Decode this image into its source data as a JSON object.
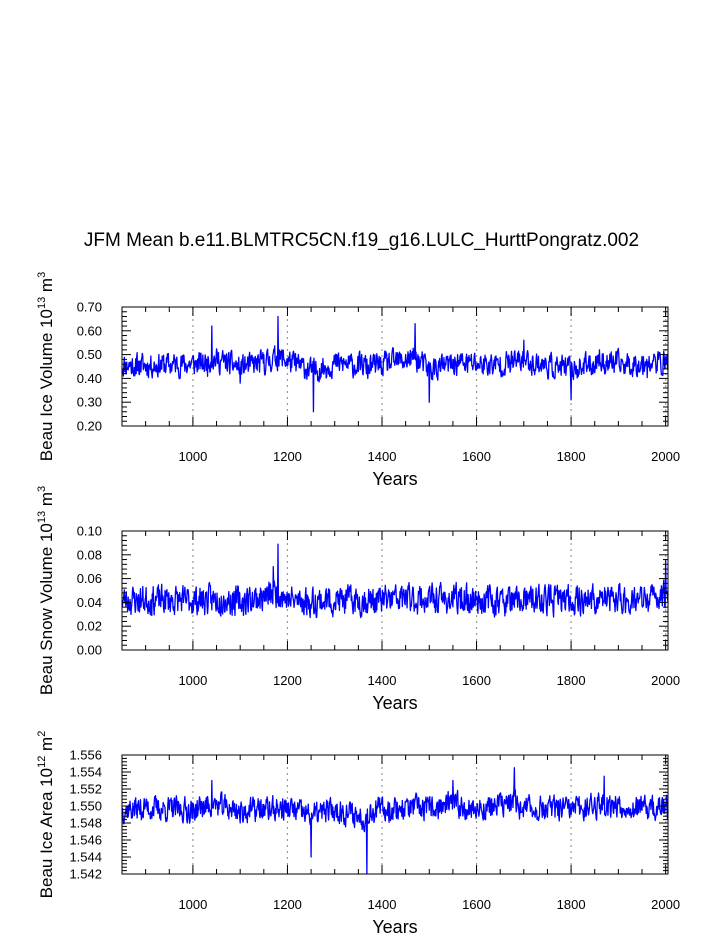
{
  "title": "JFM Mean b.e11.BLMTRC5CN.f19_g16.LULC_HurttPongratz.002",
  "colors": {
    "series": "#0000ff",
    "axis": "#000000",
    "refline": "#999999"
  },
  "chart_data": [
    {
      "type": "line",
      "name": "ice-volume",
      "ylabel": "Beau Ice Volume 10^13 m^3",
      "ylabel_parts": {
        "pre": "Beau Ice Volume 10",
        "sup1": "13",
        "mid": " m",
        "sup2": "3"
      },
      "xlabel": "Years",
      "xlim": [
        850,
        2005
      ],
      "ylim": [
        0.2,
        0.7
      ],
      "xticks": [
        1000,
        1200,
        1400,
        1600,
        1800,
        2000
      ],
      "yticks": [
        "0.20",
        "0.30",
        "0.40",
        "0.50",
        "0.60",
        "0.70"
      ],
      "reference_lines_x": [
        1000,
        1200,
        1400,
        1600,
        1800,
        2000
      ],
      "series": [
        {
          "name": "Beau Ice Volume",
          "base": 0.46,
          "amp": 0.045,
          "seed": 11,
          "x": [
            850,
            880,
            950,
            1030,
            1040,
            1100,
            1150,
            1180,
            1255,
            1300,
            1370,
            1400,
            1470,
            1500,
            1560,
            1640,
            1700,
            1750,
            1800,
            1860,
            1920,
            1960,
            2000
          ],
          "values": [
            0.44,
            0.42,
            0.45,
            0.48,
            0.62,
            0.38,
            0.5,
            0.66,
            0.26,
            0.48,
            0.4,
            0.44,
            0.63,
            0.3,
            0.5,
            0.44,
            0.56,
            0.42,
            0.31,
            0.52,
            0.45,
            0.48,
            0.49
          ]
        }
      ]
    },
    {
      "type": "line",
      "name": "snow-volume",
      "ylabel": "Beau Snow Volume 10^13 m^3",
      "ylabel_parts": {
        "pre": "Beau Snow Volume 10",
        "sup1": "13",
        "mid": " m",
        "sup2": "3"
      },
      "xlabel": "Years",
      "xlim": [
        850,
        2005
      ],
      "ylim": [
        0.0,
        0.1
      ],
      "xticks": [
        1000,
        1200,
        1400,
        1600,
        1800,
        2000
      ],
      "yticks": [
        "0.00",
        "0.02",
        "0.04",
        "0.06",
        "0.08",
        "0.10"
      ],
      "reference_lines_x": [
        1000,
        1200,
        1400,
        1600,
        1800,
        2000
      ],
      "series": [
        {
          "name": "Beau Snow Volume",
          "base": 0.042,
          "amp": 0.011,
          "seed": 23,
          "x": [
            850,
            900,
            980,
            1060,
            1100,
            1170,
            1180,
            1200,
            1250,
            1300,
            1380,
            1450,
            1520,
            1600,
            1680,
            1760,
            1840,
            1900,
            1960,
            2000
          ],
          "values": [
            0.04,
            0.044,
            0.04,
            0.045,
            0.035,
            0.07,
            0.089,
            0.042,
            0.035,
            0.04,
            0.038,
            0.05,
            0.044,
            0.045,
            0.036,
            0.042,
            0.045,
            0.046,
            0.04,
            0.076
          ]
        }
      ]
    },
    {
      "type": "line",
      "name": "ice-area",
      "ylabel": "Beau Ice Area 10^12 m^2",
      "ylabel_parts": {
        "pre": "Beau Ice Area 10",
        "sup1": "12",
        "mid": " m",
        "sup2": "2"
      },
      "xlabel": "Years",
      "xlim": [
        850,
        2005
      ],
      "ylim": [
        1.542,
        1.556
      ],
      "xticks": [
        1000,
        1200,
        1400,
        1600,
        1800,
        2000
      ],
      "yticks": [
        "1.542",
        "1.544",
        "1.546",
        "1.548",
        "1.550",
        "1.552",
        "1.554",
        "1.556"
      ],
      "reference_lines_x": [
        1000,
        1200,
        1400,
        1600,
        1800,
        2000
      ],
      "series": [
        {
          "name": "Beau Ice Area",
          "base": 1.5497,
          "amp": 0.0013,
          "seed": 37,
          "x": [
            850,
            900,
            1000,
            1040,
            1100,
            1200,
            1250,
            1300,
            1368,
            1370,
            1450,
            1500,
            1550,
            1600,
            1680,
            1700,
            1800,
            1870,
            1950,
            2000
          ],
          "values": [
            1.549,
            1.55,
            1.5485,
            1.553,
            1.548,
            1.55,
            1.544,
            1.549,
            1.542,
            1.548,
            1.5505,
            1.5495,
            1.553,
            1.549,
            1.5545,
            1.55,
            1.549,
            1.5535,
            1.5495,
            1.55
          ]
        }
      ]
    }
  ]
}
